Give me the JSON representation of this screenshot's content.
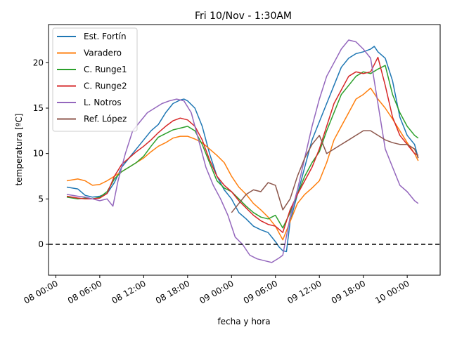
{
  "chart_data": {
    "type": "line",
    "title": "Fri 10/Nov - 1:30AM",
    "xlabel": "fecha y hora",
    "ylabel": "temperatura [ºC]",
    "x_unit": "hours",
    "x_ticks": [
      {
        "value": 0,
        "label": "08 00:00"
      },
      {
        "value": 6,
        "label": "08 06:00"
      },
      {
        "value": 12,
        "label": "08 12:00"
      },
      {
        "value": 18,
        "label": "08 18:00"
      },
      {
        "value": 24,
        "label": "09 00:00"
      },
      {
        "value": 30,
        "label": "09 06:00"
      },
      {
        "value": 36,
        "label": "09 12:00"
      },
      {
        "value": 42,
        "label": "09 18:00"
      },
      {
        "value": 48,
        "label": "10 00:00"
      }
    ],
    "y_ticks": [
      0,
      5,
      10,
      15,
      20
    ],
    "xlim": [
      -1.0,
      52.5
    ],
    "ylim": [
      -3.4,
      24.2
    ],
    "reference_line": {
      "y": 0,
      "style": "dashed",
      "color": "#000000"
    },
    "legend_position": "upper-left",
    "series": [
      {
        "name": "Est. Fortín",
        "color": "#1f77b4",
        "x": [
          1.5,
          3,
          4,
          5,
          6,
          7,
          8,
          9,
          10,
          11,
          12,
          13,
          14,
          15,
          16,
          17,
          17.5,
          18,
          19,
          20,
          21,
          22,
          23,
          24,
          25,
          26,
          27,
          28,
          29,
          30,
          30.5,
          31,
          31.5,
          32,
          33,
          34,
          35,
          36,
          37,
          38,
          39,
          40,
          41,
          42,
          43,
          43.5,
          44,
          45,
          46,
          47,
          48,
          49,
          49.5
        ],
        "y": [
          6.3,
          6.1,
          5.4,
          5.2,
          5.3,
          5.6,
          6.8,
          8.5,
          9.5,
          10.5,
          11.5,
          12.5,
          13.2,
          14.5,
          15.5,
          15.9,
          16.0,
          15.8,
          15.0,
          13.0,
          10.0,
          7.5,
          6.0,
          5.0,
          3.5,
          2.8,
          2.0,
          1.6,
          1.3,
          0.3,
          -0.3,
          -0.7,
          -0.8,
          2.5,
          5.5,
          8.5,
          11.5,
          13.5,
          15.5,
          17.5,
          19.5,
          20.5,
          21.0,
          21.2,
          21.5,
          21.8,
          21.2,
          20.5,
          18.0,
          14.0,
          12.0,
          11.0,
          9.5
        ]
      },
      {
        "name": "Varadero",
        "color": "#ff7f0e",
        "x": [
          1.5,
          3,
          4,
          5,
          6,
          7,
          8,
          9,
          10,
          11,
          12,
          13,
          14,
          15,
          16,
          17,
          18,
          19,
          20,
          21,
          22,
          23,
          24,
          25,
          26,
          27,
          28,
          29,
          30,
          31,
          32,
          33,
          34,
          35,
          36,
          37,
          38,
          39,
          40,
          41,
          42,
          43,
          44,
          45,
          46,
          47,
          48,
          49,
          49.5
        ],
        "y": [
          7.0,
          7.2,
          7.0,
          6.5,
          6.6,
          7.0,
          7.5,
          8.0,
          8.5,
          9.0,
          9.5,
          10.2,
          10.8,
          11.2,
          11.7,
          11.9,
          11.9,
          11.6,
          11.2,
          10.5,
          9.8,
          9.0,
          7.5,
          6.3,
          5.5,
          4.5,
          3.8,
          3.0,
          2.0,
          0.5,
          2.5,
          4.5,
          5.5,
          6.2,
          7.0,
          9.0,
          11.5,
          13.0,
          14.5,
          16.0,
          16.5,
          17.2,
          16.0,
          15.0,
          13.8,
          12.5,
          11.2,
          10.0,
          9.2
        ]
      },
      {
        "name": "C. Runge1",
        "color": "#2ca02c",
        "x": [
          1.5,
          3,
          4,
          5,
          6,
          7,
          8,
          9,
          10,
          11,
          12,
          13,
          14,
          15,
          16,
          17,
          18,
          19,
          20,
          21,
          22,
          23,
          24,
          25,
          26,
          27,
          28,
          29,
          30,
          31,
          32,
          33,
          34,
          35,
          36,
          37,
          38,
          39,
          40,
          41,
          42,
          43,
          44,
          45,
          46,
          47,
          48,
          49,
          49.5
        ],
        "y": [
          5.2,
          5.0,
          5.1,
          5.0,
          5.2,
          5.8,
          7.2,
          8.0,
          8.5,
          9.0,
          9.7,
          10.8,
          11.8,
          12.2,
          12.6,
          12.8,
          13.0,
          12.5,
          11.0,
          9.0,
          7.0,
          6.2,
          5.8,
          5.0,
          4.2,
          3.5,
          3.0,
          2.8,
          3.2,
          1.8,
          3.5,
          5.5,
          7.5,
          9.0,
          10.2,
          12.5,
          14.5,
          16.5,
          17.5,
          18.5,
          19.0,
          18.8,
          19.3,
          19.7,
          16.5,
          14.5,
          13.0,
          12.0,
          11.7
        ]
      },
      {
        "name": "C. Runge2",
        "color": "#d62728",
        "x": [
          1.5,
          3,
          4,
          5,
          6,
          7,
          8,
          9,
          10,
          11,
          12,
          13,
          14,
          15,
          16,
          17,
          18,
          19,
          20,
          21,
          22,
          23,
          24,
          25,
          26,
          27,
          28,
          29,
          30,
          31,
          32,
          33,
          34,
          35,
          36,
          37,
          38,
          39,
          40,
          41,
          42,
          43,
          44,
          45,
          46,
          47,
          48,
          49,
          49.5
        ],
        "y": [
          5.3,
          5.1,
          5.0,
          5.0,
          5.1,
          5.6,
          7.5,
          8.8,
          9.5,
          10.2,
          10.8,
          11.5,
          12.3,
          13.0,
          13.6,
          13.9,
          13.7,
          13.0,
          11.5,
          9.3,
          7.5,
          6.5,
          5.8,
          4.8,
          4.0,
          3.2,
          2.6,
          2.2,
          2.0,
          1.3,
          3.8,
          5.5,
          7.0,
          8.5,
          10.5,
          13.0,
          15.5,
          17.0,
          18.5,
          19.0,
          18.8,
          19.0,
          20.6,
          17.5,
          14.0,
          12.0,
          11.0,
          10.0,
          9.8
        ]
      },
      {
        "name": "L. Notros",
        "color": "#9467bd",
        "x": [
          1.5,
          3,
          4,
          5,
          6,
          7,
          7.8,
          8.5,
          9.5,
          10.5,
          11.5,
          12.5,
          13.5,
          14.5,
          15.5,
          16.5,
          17.5,
          18.5,
          19.5,
          20.5,
          21.5,
          22.5,
          23.5,
          24.5,
          25.5,
          26.5,
          27.5,
          28.5,
          29.5,
          30.5,
          31,
          32,
          33,
          34,
          35,
          36,
          37,
          38,
          39,
          40,
          41,
          42,
          43,
          44,
          45,
          46,
          47,
          48,
          49,
          49.5
        ],
        "y": [
          5.5,
          5.3,
          5.2,
          5.0,
          4.8,
          5.0,
          4.2,
          7.0,
          10.0,
          12.5,
          13.5,
          14.5,
          15.0,
          15.5,
          15.8,
          16.0,
          15.8,
          14.5,
          11.5,
          8.5,
          6.5,
          5.0,
          3.2,
          0.8,
          0.0,
          -1.2,
          -1.6,
          -1.8,
          -2.0,
          -1.5,
          -1.2,
          3.0,
          6.0,
          9.5,
          13.0,
          16.0,
          18.5,
          20.0,
          21.5,
          22.5,
          22.3,
          21.5,
          20.5,
          15.5,
          10.5,
          8.5,
          6.5,
          5.8,
          4.8,
          4.5
        ]
      },
      {
        "name": "Ref. López",
        "color": "#8c564b",
        "x": [
          24,
          25,
          26,
          27,
          28,
          29,
          30,
          31,
          32,
          33,
          34,
          35,
          36,
          37,
          38,
          39,
          40,
          41,
          42,
          43,
          44,
          45,
          46,
          47,
          48,
          49,
          49.5
        ],
        "y": [
          3.5,
          4.5,
          5.5,
          6.0,
          5.8,
          6.8,
          6.5,
          3.8,
          5.0,
          7.5,
          9.5,
          11.0,
          12.0,
          10.0,
          10.5,
          11.0,
          11.5,
          12.0,
          12.5,
          12.5,
          12.0,
          11.5,
          11.2,
          11.0,
          11.0,
          10.5,
          9.5
        ]
      }
    ]
  }
}
